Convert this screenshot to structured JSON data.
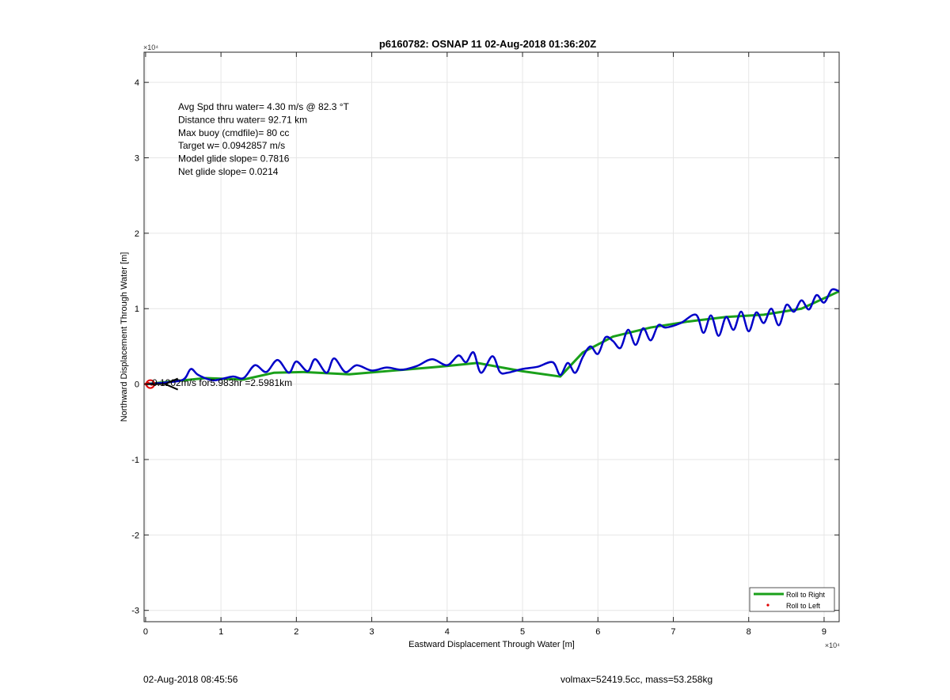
{
  "chart_data": {
    "type": "line",
    "title": "p6160782: OSNAP 11 02-Aug-2018 01:36:20Z",
    "xlabel": "Eastward Displacement Through Water [m]",
    "ylabel": "Northward Displacement Through Water [m]",
    "xlim": [
      -200,
      92000
    ],
    "ylim": [
      -31500,
      44000
    ],
    "x_exponent_label": "×10⁴",
    "y_exponent_label": "×10⁴",
    "xticks": [
      0,
      10000,
      20000,
      30000,
      40000,
      50000,
      60000,
      70000,
      80000,
      90000
    ],
    "xtick_labels": [
      "0",
      "1",
      "2",
      "3",
      "4",
      "5",
      "6",
      "7",
      "8",
      "9"
    ],
    "yticks": [
      -30000,
      -20000,
      -10000,
      0,
      10000,
      20000,
      30000,
      40000
    ],
    "ytick_labels": [
      "-3",
      "-2",
      "-1",
      "0",
      "1",
      "2",
      "3",
      "4"
    ],
    "grid": true,
    "legend_position": "bottom-right",
    "series": [
      {
        "name": "Roll to Right",
        "color": "#1aa01a",
        "x": [
          0,
          3000,
          8000,
          13000,
          17000,
          21000,
          27000,
          33000,
          39000,
          44000,
          50000,
          55000,
          58000,
          62000,
          67000,
          72000,
          77000,
          82000,
          87000,
          92000
        ],
        "y": [
          0,
          300,
          800,
          600,
          1500,
          1600,
          1300,
          1800,
          2300,
          2800,
          1700,
          1000,
          4200,
          6300,
          7500,
          8300,
          8900,
          9200,
          10000,
          12300
        ]
      },
      {
        "name": "Roll to Left",
        "color": "#e00000",
        "x": [
          0,
          400,
          800
        ],
        "y": [
          0,
          100,
          -50
        ]
      }
    ],
    "track": {
      "color": "#0000c8",
      "x": [
        0,
        2500,
        5000,
        6000,
        7000,
        9000,
        11500,
        13000,
        14500,
        16000,
        17500,
        19000,
        20000,
        21500,
        22500,
        24000,
        25000,
        26500,
        28000,
        30000,
        32000,
        34000,
        36000,
        38000,
        40000,
        41500,
        42500,
        43500,
        44500,
        46000,
        47000,
        48000,
        50000,
        52000,
        54000,
        55000,
        56000,
        57000,
        58000,
        59000,
        60000,
        61000,
        62000,
        63000,
        64000,
        65000,
        66000,
        67000,
        68000,
        69000,
        71000,
        73000,
        74000,
        75000,
        76000,
        77000,
        78000,
        79000,
        80000,
        81000,
        82000,
        83000,
        84000,
        85000,
        86000,
        87000,
        88000,
        89000,
        90000,
        91000,
        92000
      ],
      "y": [
        0,
        200,
        600,
        2000,
        1200,
        500,
        1000,
        800,
        2500,
        1600,
        3200,
        1500,
        3000,
        1700,
        3300,
        1500,
        3400,
        1600,
        2500,
        1800,
        2200,
        1900,
        2400,
        3300,
        2500,
        3800,
        2900,
        4200,
        1500,
        3700,
        1600,
        1500,
        2000,
        2300,
        2900,
        1200,
        2800,
        1500,
        3600,
        5000,
        4000,
        6200,
        5700,
        4800,
        7200,
        5200,
        7400,
        5800,
        7800,
        7500,
        8100,
        9200,
        6800,
        9100,
        6400,
        8900,
        7200,
        9600,
        7000,
        9500,
        8100,
        10000,
        7800,
        10500,
        9600,
        11100,
        9900,
        11800,
        10800,
        12500,
        12300
      ]
    },
    "annotation_lines": [
      "Avg Spd thru water=  4.30 m/s @  82.3 °T",
      "Distance thru water= 92.71 km",
      "Max buoy (cmdfile)= 80 cc",
      "Target w= 0.0942857 m/s",
      "Model glide slope= 0.7816",
      "Net glide slope= 0.0214"
    ],
    "current_arrow": {
      "label": "0.1202m/s for5.983hr =2.5981km",
      "x": 0,
      "y": 0,
      "dx": 2598,
      "dy": 0,
      "color": "#000000"
    },
    "start_marker_color": "#e00000"
  },
  "footer": {
    "left": "02-Aug-2018 08:45:56",
    "right": "volmax=52419.5cc, mass=53.258kg"
  }
}
